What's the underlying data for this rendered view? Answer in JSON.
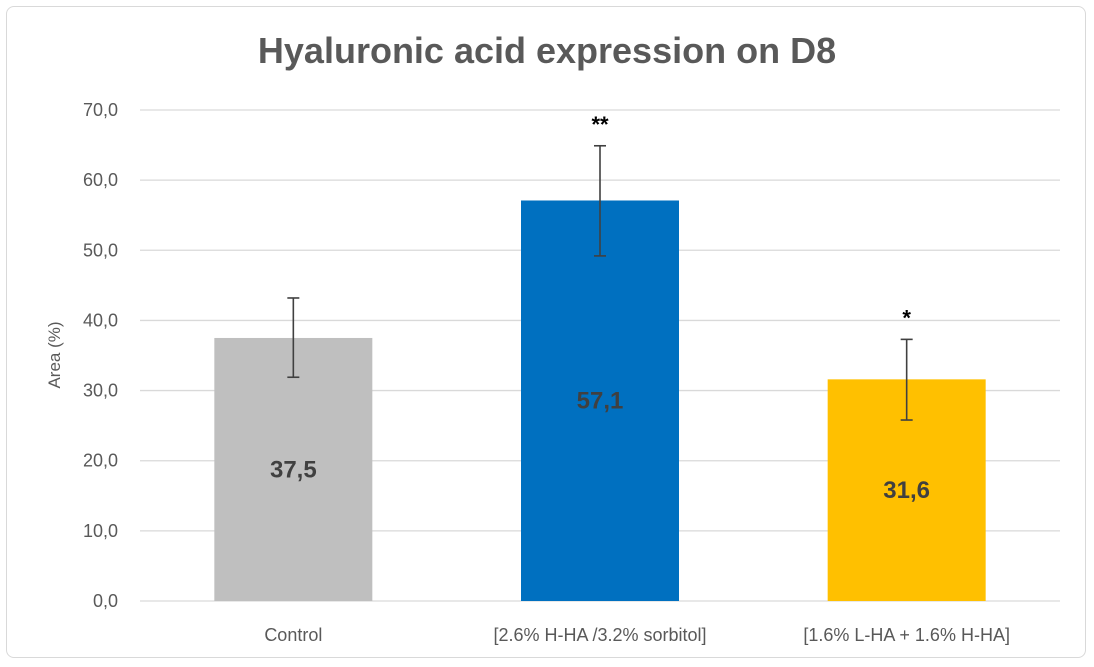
{
  "chart_data": {
    "type": "bar",
    "title": "Hyaluronic acid expression on D8",
    "ylabel": "Area (%)",
    "xlabel": "",
    "ylim": [
      0,
      70
    ],
    "yticks": [
      "0,0",
      "10,0",
      "20,0",
      "30,0",
      "40,0",
      "50,0",
      "60,0",
      "70,0"
    ],
    "ytick_values": [
      0,
      10,
      20,
      30,
      40,
      50,
      60,
      70
    ],
    "categories": [
      "Control",
      "[2.6% H-HA /3.2% sorbitol]",
      "[1.6% L-HA + 1.6% H-HA]"
    ],
    "values": [
      37.5,
      57.1,
      31.6
    ],
    "value_labels": [
      "37,5",
      "57,1",
      "31,6"
    ],
    "error_low": [
      31.9,
      49.2,
      25.8
    ],
    "error_high": [
      43.2,
      64.9,
      37.3
    ],
    "significance": [
      "",
      "**",
      "*"
    ],
    "colors": [
      "#bfbfbf",
      "#0070c0",
      "#ffc000"
    ],
    "grid": true
  }
}
